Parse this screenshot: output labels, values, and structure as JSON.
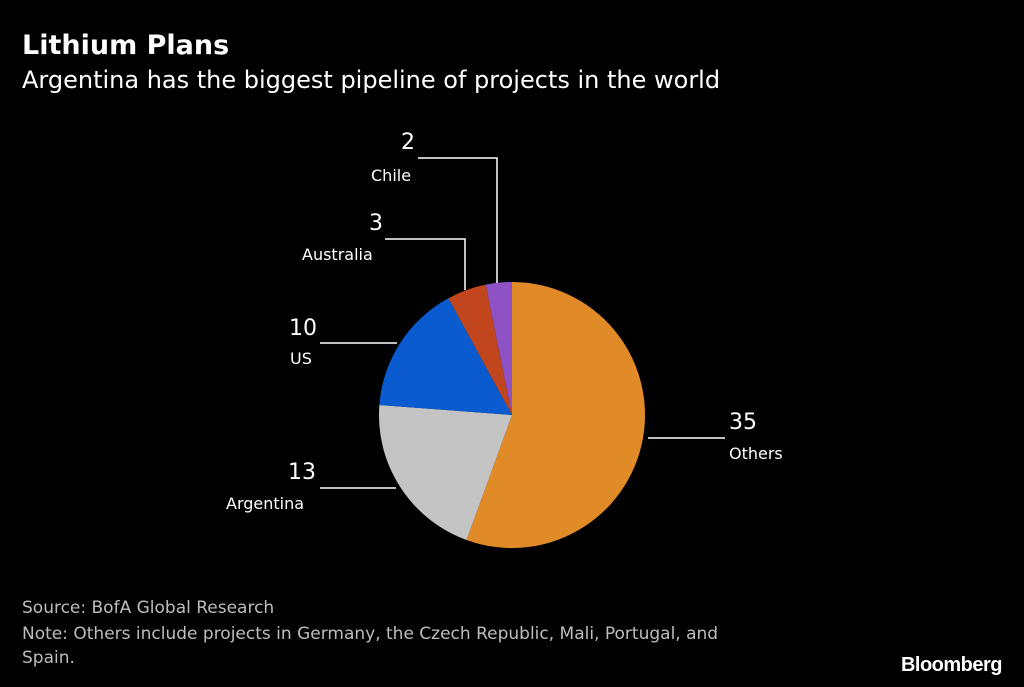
{
  "title": "Lithium Plans",
  "subtitle": "Argentina has the biggest pipeline of projects in the world",
  "chart_data": {
    "type": "pie",
    "start": "top, clockwise",
    "slices": [
      {
        "label": "Others",
        "value": 35,
        "color": "#e08b28"
      },
      {
        "label": "Argentina",
        "value": 13,
        "color": "#c4c4c4"
      },
      {
        "label": "US",
        "value": 10,
        "color": "#0a5bd0"
      },
      {
        "label": "Australia",
        "value": 3,
        "color": "#c1461d"
      },
      {
        "label": "Chile",
        "value": 2,
        "color": "#8e52c4"
      }
    ]
  },
  "footer": {
    "source": "Source: BofA Global Research",
    "note_line1": "Note: Others include projects in Germany, the Czech Republic, Mali, Portugal, and",
    "note_line2": "Spain.",
    "logo": "Bloomberg"
  }
}
